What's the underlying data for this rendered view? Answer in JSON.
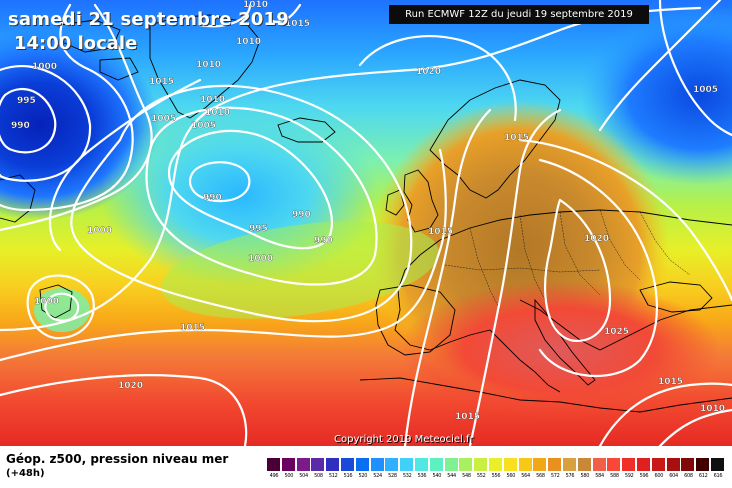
{
  "header": {
    "date": "samedi 21 septembre 2019",
    "time": "14:00 locale",
    "run": "Run ECMWF 12Z du jeudi 19 septembre 2019"
  },
  "copyright": "Copyright 2019 Meteociel.fr",
  "footer": {
    "title": "Géop. z500, pression niveau mer",
    "subtitle": "(+48h)"
  },
  "isobar_labels": [
    {
      "text": "1010"
    },
    {
      "text": "1015"
    },
    {
      "text": "1010"
    },
    {
      "text": "1000"
    },
    {
      "text": "1010"
    },
    {
      "text": "995"
    },
    {
      "text": "1015"
    },
    {
      "text": "1020"
    },
    {
      "text": "990"
    },
    {
      "text": "1010"
    },
    {
      "text": "1010"
    },
    {
      "text": "1005"
    },
    {
      "text": "1005"
    },
    {
      "text": "1005"
    },
    {
      "text": "1015"
    },
    {
      "text": "990"
    },
    {
      "text": "1000"
    },
    {
      "text": "990"
    },
    {
      "text": "995"
    },
    {
      "text": "990"
    },
    {
      "text": "1015"
    },
    {
      "text": "1020"
    },
    {
      "text": "1000"
    },
    {
      "text": "1000"
    },
    {
      "text": "1015"
    },
    {
      "text": "1025"
    },
    {
      "text": "1020"
    },
    {
      "text": "1015"
    },
    {
      "text": "1010"
    },
    {
      "text": "1015"
    }
  ],
  "legend": {
    "ticks": [
      "496",
      "500",
      "504",
      "508",
      "512",
      "516",
      "520",
      "524",
      "528",
      "532",
      "536",
      "540",
      "544",
      "548",
      "552",
      "556",
      "560",
      "564",
      "568",
      "572",
      "576",
      "580",
      "584",
      "588",
      "592",
      "596",
      "600",
      "604",
      "608",
      "612",
      "616"
    ],
    "colors": [
      "#4a0036",
      "#6a0060",
      "#7c1a8c",
      "#5a2aa8",
      "#3030c0",
      "#1c4ad8",
      "#0a6ef0",
      "#1e90ff",
      "#30b0ff",
      "#40d0f8",
      "#50e8e0",
      "#5ef0c0",
      "#80f090",
      "#a8f060",
      "#c8f040",
      "#e8f028",
      "#f8e020",
      "#f8c818",
      "#f0a818",
      "#e89020",
      "#d8a040",
      "#c88838",
      "#f06048",
      "#f84838",
      "#f03028",
      "#e02020",
      "#c81818",
      "#a81010",
      "#800808",
      "#400000",
      "#101010"
    ]
  },
  "colors": {
    "low": "#0a3cd0",
    "mid": "#9aee55",
    "high": "#c9892d",
    "warm": "#f24630",
    "isobar": "#ffffff",
    "coast": "#000000"
  }
}
